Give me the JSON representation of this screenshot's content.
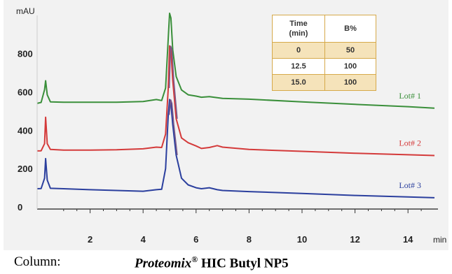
{
  "chart_data": {
    "type": "line",
    "x_unit": "min",
    "y_unit": "mAU",
    "xlim": [
      0,
      15
    ],
    "ylim": [
      -80,
      1050
    ],
    "x_ticks": [
      {
        "value": 2,
        "label": "2"
      },
      {
        "value": 4,
        "label": "4"
      },
      {
        "value": 6,
        "label": "6"
      },
      {
        "value": 8,
        "label": "8"
      },
      {
        "value": 10,
        "label": "10"
      },
      {
        "value": 12,
        "label": "12"
      },
      {
        "value": 14,
        "label": "14"
      }
    ],
    "y_ticks": [
      {
        "value": 0,
        "label": "0"
      },
      {
        "value": 200,
        "label": "200"
      },
      {
        "value": 400,
        "label": "400"
      },
      {
        "value": 600,
        "label": "600"
      },
      {
        "value": 800,
        "label": "800"
      }
    ],
    "grid": false,
    "series": [
      {
        "name": "Lot# 1",
        "color": "#3a8f3a",
        "points": [
          [
            0.0,
            540
          ],
          [
            0.15,
            545
          ],
          [
            0.28,
            612
          ],
          [
            0.32,
            658
          ],
          [
            0.38,
            585
          ],
          [
            0.5,
            548
          ],
          [
            1.0,
            546
          ],
          [
            2.0,
            546
          ],
          [
            3.0,
            546
          ],
          [
            4.0,
            550
          ],
          [
            4.5,
            560
          ],
          [
            4.7,
            555
          ],
          [
            4.85,
            620
          ],
          [
            4.95,
            880
          ],
          [
            5.0,
            1010
          ],
          [
            5.05,
            985
          ],
          [
            5.12,
            820
          ],
          [
            5.25,
            680
          ],
          [
            5.45,
            610
          ],
          [
            5.7,
            585
          ],
          [
            6.0,
            578
          ],
          [
            6.2,
            572
          ],
          [
            6.5,
            575
          ],
          [
            6.8,
            570
          ],
          [
            7.0,
            566
          ],
          [
            8.0,
            562
          ],
          [
            10.0,
            548
          ],
          [
            12.0,
            535
          ],
          [
            14.0,
            523
          ],
          [
            15.0,
            515
          ]
        ]
      },
      {
        "name": "Lot# 2",
        "color": "#d43a3a",
        "points": [
          [
            0.0,
            292
          ],
          [
            0.15,
            293
          ],
          [
            0.28,
            330
          ],
          [
            0.32,
            468
          ],
          [
            0.38,
            330
          ],
          [
            0.5,
            300
          ],
          [
            1.0,
            296
          ],
          [
            2.0,
            296
          ],
          [
            3.0,
            298
          ],
          [
            4.0,
            303
          ],
          [
            4.5,
            312
          ],
          [
            4.7,
            310
          ],
          [
            4.85,
            380
          ],
          [
            4.95,
            620
          ],
          [
            5.0,
            840
          ],
          [
            5.05,
            820
          ],
          [
            5.12,
            660
          ],
          [
            5.25,
            460
          ],
          [
            5.45,
            360
          ],
          [
            5.7,
            335
          ],
          [
            6.0,
            318
          ],
          [
            6.2,
            305
          ],
          [
            6.5,
            310
          ],
          [
            6.8,
            320
          ],
          [
            7.0,
            312
          ],
          [
            8.0,
            300
          ],
          [
            10.0,
            290
          ],
          [
            12.0,
            280
          ],
          [
            14.0,
            272
          ],
          [
            15.0,
            268
          ]
        ]
      },
      {
        "name": "Lot# 3",
        "color": "#2b3f9e",
        "points": [
          [
            0.0,
            95
          ],
          [
            0.15,
            96
          ],
          [
            0.28,
            150
          ],
          [
            0.32,
            252
          ],
          [
            0.38,
            140
          ],
          [
            0.5,
            97
          ],
          [
            1.0,
            95
          ],
          [
            2.0,
            90
          ],
          [
            3.0,
            86
          ],
          [
            4.0,
            82
          ],
          [
            4.5,
            90
          ],
          [
            4.7,
            92
          ],
          [
            4.85,
            200
          ],
          [
            4.95,
            480
          ],
          [
            5.0,
            560
          ],
          [
            5.05,
            540
          ],
          [
            5.12,
            430
          ],
          [
            5.25,
            270
          ],
          [
            5.45,
            150
          ],
          [
            5.7,
            115
          ],
          [
            6.0,
            100
          ],
          [
            6.2,
            95
          ],
          [
            6.5,
            100
          ],
          [
            6.8,
            90
          ],
          [
            7.0,
            86
          ],
          [
            8.0,
            80
          ],
          [
            10.0,
            70
          ],
          [
            12.0,
            60
          ],
          [
            14.0,
            52
          ],
          [
            15.0,
            48
          ]
        ]
      }
    ]
  },
  "gradient_table": {
    "header": {
      "time": "Time\n(min)",
      "b": "B%"
    },
    "rows": [
      {
        "time": "0",
        "b": "50"
      },
      {
        "time": "12.5",
        "b": "100"
      },
      {
        "time": "15.0",
        "b": "100"
      }
    ],
    "row_colors": {
      "shaded": "#f5e3ba",
      "border": "#d6a94a"
    }
  },
  "caption": {
    "label": "Column:",
    "value_product": "Proteomix",
    "value_mark": "®",
    "value_rest": " HIC Butyl NP5"
  }
}
